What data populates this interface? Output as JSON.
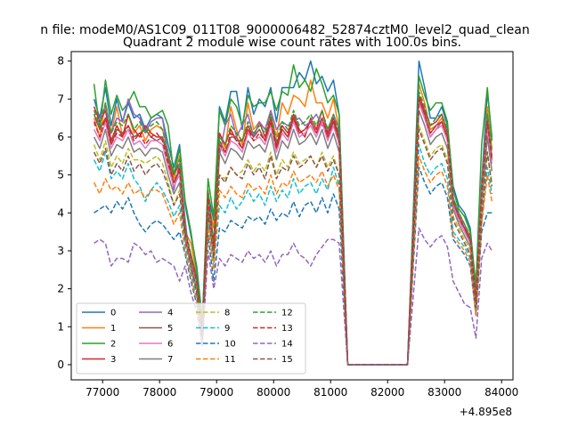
{
  "figure": {
    "suptitle": "n file: modeM0/AS1C09_011T08_9000006482_52874cztM0_level2_quad_clean",
    "title": "Quadrant 2 module wise count rates with 100.0s bins.",
    "offset_text": "+4.895e8"
  },
  "chart_data": {
    "type": "line",
    "title": "Quadrant 2 module wise count rates with 100.0s bins.",
    "xlabel": "",
    "ylabel": "",
    "x_offset": 489500000,
    "xlim": [
      76450,
      84200
    ],
    "ylim": [
      -0.4,
      8.25
    ],
    "x_ticks": [
      77000,
      78000,
      79000,
      80000,
      81000,
      82000,
      83000,
      84000
    ],
    "x_tick_labels": [
      "77000",
      "78000",
      "79000",
      "80000",
      "81000",
      "82000",
      "83000",
      "84000"
    ],
    "y_ticks": [
      0,
      1,
      2,
      3,
      4,
      5,
      6,
      7,
      8
    ],
    "y_tick_labels": [
      "0",
      "1",
      "2",
      "3",
      "4",
      "5",
      "6",
      "7",
      "8"
    ],
    "grid": false,
    "legend": {
      "placement": "lower-left",
      "columns": 4
    },
    "x": [
      76850,
      76950,
      77050,
      77150,
      77250,
      77350,
      77450,
      77550,
      77650,
      77750,
      77850,
      77950,
      78050,
      78150,
      78250,
      78350,
      78450,
      78550,
      78650,
      78750,
      78850,
      78950,
      79050,
      79150,
      79250,
      79350,
      79450,
      79550,
      79650,
      79750,
      79850,
      79950,
      80050,
      80150,
      80250,
      80350,
      80450,
      80550,
      80650,
      80750,
      80850,
      80950,
      81050,
      81150,
      81300,
      81500,
      82000,
      82350,
      82550,
      82650,
      82750,
      82850,
      82950,
      83050,
      83150,
      83250,
      83350,
      83450,
      83550,
      83650,
      83750,
      83830
    ],
    "series": [
      {
        "name": "0",
        "color": "#1f77b4",
        "dashed": false,
        "values": [
          7.0,
          6.5,
          7.3,
          6.3,
          7.0,
          6.4,
          6.9,
          6.5,
          6.6,
          6.2,
          6.5,
          6.6,
          6.5,
          5.8,
          5.2,
          5.8,
          4.2,
          3.4,
          2.6,
          1.2,
          4.5,
          3.8,
          6.8,
          6.4,
          7.2,
          7.2,
          6.2,
          7.3,
          6.6,
          7.0,
          6.8,
          7.3,
          6.4,
          7.3,
          7.3,
          7.3,
          7.7,
          7.5,
          8.0,
          7.4,
          7.6,
          7.2,
          7.5,
          6.6,
          0,
          0,
          0,
          0,
          8.0,
          7.3,
          6.5,
          6.5,
          6.8,
          6.3,
          4.7,
          4.2,
          4.0,
          3.6,
          2.0,
          4.8,
          7.2,
          6.0
        ]
      },
      {
        "name": "1",
        "color": "#ff7f0e",
        "dashed": false,
        "values": [
          6.5,
          6.0,
          6.9,
          6.1,
          6.8,
          6.0,
          6.6,
          6.1,
          6.3,
          5.9,
          6.2,
          6.3,
          6.2,
          5.6,
          4.9,
          5.5,
          3.5,
          3.2,
          2.4,
          0.9,
          4.3,
          3.6,
          6.1,
          5.7,
          6.8,
          6.2,
          5.8,
          6.9,
          6.2,
          6.4,
          6.2,
          6.6,
          6.0,
          6.9,
          6.6,
          7.1,
          7.0,
          6.8,
          7.5,
          6.9,
          6.9,
          6.5,
          7.0,
          6.2,
          0,
          0,
          0,
          0,
          7.4,
          6.9,
          6.2,
          6.3,
          6.5,
          5.9,
          4.4,
          3.9,
          3.7,
          3.4,
          1.8,
          4.6,
          6.8,
          5.7
        ]
      },
      {
        "name": "2",
        "color": "#2ca02c",
        "dashed": false,
        "values": [
          7.4,
          6.2,
          7.5,
          6.6,
          7.1,
          6.7,
          6.9,
          7.2,
          6.8,
          6.8,
          6.5,
          6.6,
          6.7,
          6.3,
          5.0,
          5.7,
          4.3,
          3.5,
          2.5,
          1.1,
          4.9,
          3.9,
          6.7,
          6.3,
          7.0,
          6.8,
          6.3,
          7.1,
          6.8,
          6.9,
          6.9,
          7.2,
          6.7,
          7.2,
          7.1,
          7.9,
          7.3,
          7.5,
          7.2,
          7.8,
          7.4,
          6.9,
          7.1,
          6.6,
          0,
          0,
          0,
          0,
          7.6,
          7.1,
          6.7,
          6.9,
          6.9,
          6.4,
          4.6,
          4.1,
          3.9,
          3.5,
          2.1,
          5.8,
          7.3,
          5.9
        ]
      },
      {
        "name": "3",
        "color": "#d62728",
        "dashed": false,
        "values": [
          6.8,
          6.4,
          6.7,
          5.9,
          6.3,
          6.0,
          6.6,
          6.2,
          6.0,
          6.3,
          6.1,
          6.0,
          6.0,
          5.5,
          5.0,
          5.3,
          3.5,
          2.8,
          2.2,
          0.9,
          4.6,
          3.1,
          6.1,
          5.8,
          6.2,
          5.9,
          5.9,
          6.3,
          6.0,
          6.4,
          6.0,
          6.5,
          5.8,
          6.3,
          6.1,
          6.6,
          6.2,
          6.0,
          6.5,
          6.2,
          6.7,
          6.1,
          6.5,
          6.0,
          0,
          0,
          0,
          0,
          7.1,
          6.7,
          6.3,
          6.4,
          6.6,
          6.1,
          4.3,
          3.8,
          3.6,
          3.2,
          1.7,
          4.3,
          6.4,
          5.5
        ]
      },
      {
        "name": "4",
        "color": "#9467bd",
        "dashed": false,
        "values": [
          6.3,
          6.5,
          6.8,
          6.1,
          6.5,
          6.4,
          7.0,
          6.6,
          6.5,
          6.1,
          6.4,
          6.5,
          6.5,
          5.5,
          4.6,
          5.3,
          3.8,
          2.5,
          2.0,
          0.7,
          4.0,
          2.9,
          5.5,
          6.3,
          6.6,
          6.0,
          6.3,
          6.6,
          6.0,
          6.4,
          6.2,
          6.7,
          6.2,
          6.4,
          6.3,
          6.4,
          6.5,
          6.3,
          6.4,
          6.6,
          6.3,
          6.2,
          6.6,
          6.2,
          0,
          0,
          0,
          0,
          6.9,
          6.5,
          6.0,
          6.2,
          6.4,
          6.0,
          4.4,
          4.0,
          3.7,
          3.3,
          1.8,
          4.9,
          6.6,
          5.4
        ]
      },
      {
        "name": "5",
        "color": "#8c564b",
        "dashed": false,
        "values": [
          6.6,
          6.2,
          6.5,
          5.8,
          6.2,
          6.1,
          6.3,
          6.0,
          6.1,
          6.2,
          6.0,
          5.9,
          6.0,
          5.4,
          4.8,
          5.1,
          3.4,
          2.9,
          2.3,
          0.8,
          4.4,
          3.2,
          5.9,
          5.6,
          6.0,
          6.0,
          5.7,
          6.2,
          6.0,
          6.2,
          5.9,
          6.4,
          5.7,
          6.2,
          6.0,
          6.5,
          6.1,
          6.2,
          6.4,
          6.1,
          6.5,
          6.0,
          6.4,
          5.9,
          0,
          0,
          0,
          0,
          7.0,
          6.6,
          6.1,
          6.3,
          6.4,
          6.0,
          4.3,
          3.9,
          3.6,
          3.3,
          1.7,
          4.5,
          6.3,
          5.4
        ]
      },
      {
        "name": "6",
        "color": "#e377c2",
        "dashed": false,
        "values": [
          6.2,
          5.9,
          6.4,
          5.7,
          6.0,
          5.9,
          6.2,
          5.8,
          5.9,
          5.7,
          5.9,
          5.9,
          5.8,
          5.2,
          4.7,
          5.0,
          3.4,
          2.7,
          2.1,
          0.7,
          4.3,
          3.0,
          5.8,
          5.5,
          5.9,
          5.8,
          5.6,
          6.1,
          5.9,
          6.0,
          5.8,
          6.3,
          5.6,
          6.1,
          5.9,
          6.4,
          6.0,
          6.1,
          6.3,
          6.0,
          6.4,
          5.9,
          6.3,
          5.8,
          0,
          0,
          0,
          0,
          6.9,
          6.5,
          6.0,
          6.2,
          6.3,
          5.9,
          4.2,
          3.8,
          3.5,
          3.2,
          1.6,
          4.4,
          6.2,
          5.3
        ]
      },
      {
        "name": "7",
        "color": "#7f7f7f",
        "dashed": false,
        "values": [
          6.0,
          5.7,
          6.2,
          5.5,
          5.8,
          5.7,
          6.0,
          5.6,
          5.7,
          5.5,
          5.7,
          5.7,
          5.6,
          5.0,
          4.5,
          4.8,
          3.3,
          2.6,
          2.0,
          0.7,
          4.1,
          2.9,
          5.6,
          5.3,
          5.7,
          5.6,
          5.4,
          5.9,
          5.7,
          5.8,
          5.6,
          6.1,
          5.4,
          5.9,
          5.7,
          6.2,
          5.8,
          5.9,
          6.1,
          5.8,
          6.2,
          5.7,
          6.1,
          5.6,
          0,
          0,
          0,
          0,
          6.7,
          6.3,
          5.8,
          6.0,
          6.1,
          5.7,
          4.1,
          3.7,
          3.4,
          3.1,
          1.5,
          4.2,
          6.0,
          5.1
        ]
      },
      {
        "name": "8",
        "color": "#bcbd22",
        "dashed": true,
        "values": [
          5.8,
          5.4,
          5.9,
          5.2,
          5.5,
          5.3,
          5.7,
          5.4,
          5.4,
          5.3,
          5.4,
          5.5,
          5.3,
          4.8,
          4.2,
          4.6,
          3.2,
          2.5,
          1.9,
          0.6,
          3.9,
          2.7,
          5.0,
          4.9,
          5.2,
          5.0,
          5.1,
          5.4,
          5.1,
          5.3,
          5.1,
          5.6,
          5.0,
          5.4,
          5.2,
          5.6,
          5.3,
          5.4,
          5.5,
          5.2,
          5.6,
          5.2,
          5.5,
          5.0,
          0,
          0,
          0,
          0,
          6.3,
          5.9,
          5.5,
          5.7,
          5.8,
          5.4,
          3.9,
          3.6,
          3.3,
          3.0,
          1.4,
          4.0,
          5.6,
          4.8
        ]
      },
      {
        "name": "9",
        "color": "#17becf",
        "dashed": true,
        "values": [
          5.4,
          5.1,
          5.6,
          4.9,
          5.1,
          4.9,
          5.3,
          4.9,
          4.7,
          4.3,
          4.6,
          4.8,
          4.6,
          4.3,
          3.9,
          4.2,
          3.1,
          2.4,
          1.8,
          0.6,
          3.7,
          2.6,
          4.2,
          4.0,
          4.4,
          4.1,
          4.3,
          4.6,
          4.3,
          4.5,
          4.2,
          4.7,
          4.3,
          4.6,
          4.4,
          4.9,
          4.5,
          4.7,
          4.8,
          4.5,
          4.9,
          4.6,
          5.2,
          4.7,
          0,
          0,
          0,
          0,
          5.8,
          5.3,
          5.0,
          5.2,
          5.3,
          4.9,
          3.5,
          3.3,
          3.1,
          2.8,
          1.4,
          3.8,
          5.2,
          4.5
        ]
      },
      {
        "name": "10",
        "color": "#1f77b4",
        "dashed": true,
        "values": [
          4.0,
          4.1,
          4.2,
          4.0,
          4.3,
          4.1,
          4.4,
          4.0,
          3.7,
          3.5,
          3.7,
          3.8,
          3.7,
          3.5,
          3.3,
          3.5,
          2.9,
          2.2,
          1.6,
          0.5,
          3.4,
          2.2,
          3.6,
          3.5,
          3.8,
          3.7,
          3.6,
          3.9,
          3.8,
          3.9,
          3.7,
          4.1,
          3.8,
          4.0,
          3.9,
          4.3,
          3.9,
          4.2,
          4.3,
          4.0,
          4.4,
          4.0,
          4.5,
          4.1,
          0,
          0,
          0,
          0,
          5.2,
          4.8,
          4.5,
          4.7,
          4.8,
          4.4,
          3.3,
          3.1,
          2.9,
          2.6,
          1.3,
          3.5,
          4.0,
          4.0
        ]
      },
      {
        "name": "11",
        "color": "#ff7f0e",
        "dashed": true,
        "values": [
          4.8,
          4.5,
          4.9,
          4.6,
          4.7,
          4.5,
          4.8,
          4.5,
          4.6,
          4.4,
          4.6,
          4.6,
          4.5,
          4.1,
          3.7,
          4.0,
          3.0,
          2.3,
          1.7,
          0.5,
          3.6,
          2.5,
          4.6,
          4.4,
          4.7,
          4.5,
          4.4,
          4.8,
          4.6,
          4.7,
          4.5,
          5.0,
          4.5,
          4.8,
          4.7,
          5.1,
          4.8,
          4.9,
          5.0,
          4.8,
          5.1,
          4.7,
          5.0,
          4.6,
          0,
          0,
          0,
          0,
          5.5,
          5.1,
          4.8,
          5.0,
          5.1,
          4.7,
          3.4,
          3.2,
          3.0,
          2.7,
          1.3,
          3.7,
          5.0,
          4.3
        ]
      },
      {
        "name": "12",
        "color": "#2ca02c",
        "dashed": true,
        "values": [
          6.7,
          6.3,
          6.9,
          6.1,
          6.4,
          6.3,
          6.6,
          6.2,
          6.4,
          6.1,
          6.3,
          6.4,
          6.2,
          5.6,
          5.0,
          5.4,
          3.6,
          2.9,
          2.3,
          0.8,
          4.6,
          3.2,
          6.0,
          5.8,
          6.3,
          6.1,
          5.9,
          6.4,
          6.1,
          6.3,
          6.1,
          6.6,
          5.9,
          6.4,
          6.2,
          6.7,
          6.3,
          6.4,
          6.6,
          6.3,
          6.7,
          6.2,
          6.6,
          6.1,
          0,
          0,
          0,
          0,
          7.2,
          6.8,
          6.3,
          6.5,
          6.6,
          6.2,
          4.4,
          4.0,
          3.7,
          3.4,
          1.8,
          4.7,
          6.6,
          5.6
        ]
      },
      {
        "name": "13",
        "color": "#d62728",
        "dashed": true,
        "values": [
          6.4,
          6.0,
          6.5,
          5.8,
          6.1,
          6.0,
          6.3,
          5.9,
          6.1,
          5.8,
          6.0,
          6.1,
          5.9,
          5.3,
          4.8,
          5.2,
          3.5,
          2.8,
          2.2,
          0.8,
          4.4,
          3.1,
          5.8,
          5.6,
          6.1,
          5.9,
          5.7,
          6.2,
          5.9,
          6.1,
          5.9,
          6.4,
          5.7,
          6.2,
          6.0,
          6.5,
          6.1,
          6.2,
          6.4,
          6.1,
          6.5,
          6.0,
          6.4,
          5.9,
          0,
          0,
          0,
          0,
          7.0,
          6.6,
          6.1,
          6.3,
          6.4,
          6.0,
          4.3,
          3.9,
          3.6,
          3.3,
          1.7,
          4.5,
          6.4,
          5.4
        ]
      },
      {
        "name": "14",
        "color": "#9467bd",
        "dashed": true,
        "values": [
          3.2,
          3.3,
          3.2,
          2.6,
          2.8,
          2.8,
          2.7,
          3.2,
          3.1,
          2.9,
          3.0,
          2.7,
          2.8,
          2.7,
          2.6,
          2.2,
          2.6,
          1.9,
          1.4,
          0.5,
          3.0,
          2.0,
          2.8,
          2.6,
          2.9,
          2.8,
          2.7,
          3.0,
          2.8,
          2.9,
          2.7,
          3.0,
          2.6,
          2.9,
          2.9,
          3.2,
          2.9,
          2.8,
          2.6,
          2.9,
          3.1,
          3.3,
          3.3,
          3.2,
          0,
          0,
          0,
          0,
          3.6,
          3.3,
          3.1,
          3.3,
          3.4,
          3.1,
          2.2,
          1.9,
          1.6,
          1.5,
          0.7,
          2.8,
          3.2,
          3.0
        ]
      },
      {
        "name": "15",
        "color": "#8c564b",
        "dashed": true,
        "values": [
          5.6,
          5.3,
          5.7,
          5.0,
          5.3,
          5.1,
          5.5,
          5.1,
          5.3,
          5.0,
          5.2,
          5.3,
          5.1,
          4.7,
          4.2,
          4.5,
          3.3,
          2.6,
          1.9,
          0.7,
          4.0,
          2.8,
          5.0,
          4.8,
          5.2,
          5.0,
          4.9,
          5.3,
          5.0,
          5.2,
          4.9,
          5.5,
          4.9,
          5.2,
          5.1,
          5.5,
          5.2,
          5.3,
          5.5,
          5.2,
          5.5,
          5.1,
          5.4,
          5.0,
          0,
          0,
          0,
          0,
          6.2,
          5.8,
          5.4,
          5.6,
          5.7,
          5.3,
          3.8,
          3.5,
          3.2,
          2.9,
          1.5,
          3.9,
          5.6,
          4.7
        ]
      }
    ]
  }
}
